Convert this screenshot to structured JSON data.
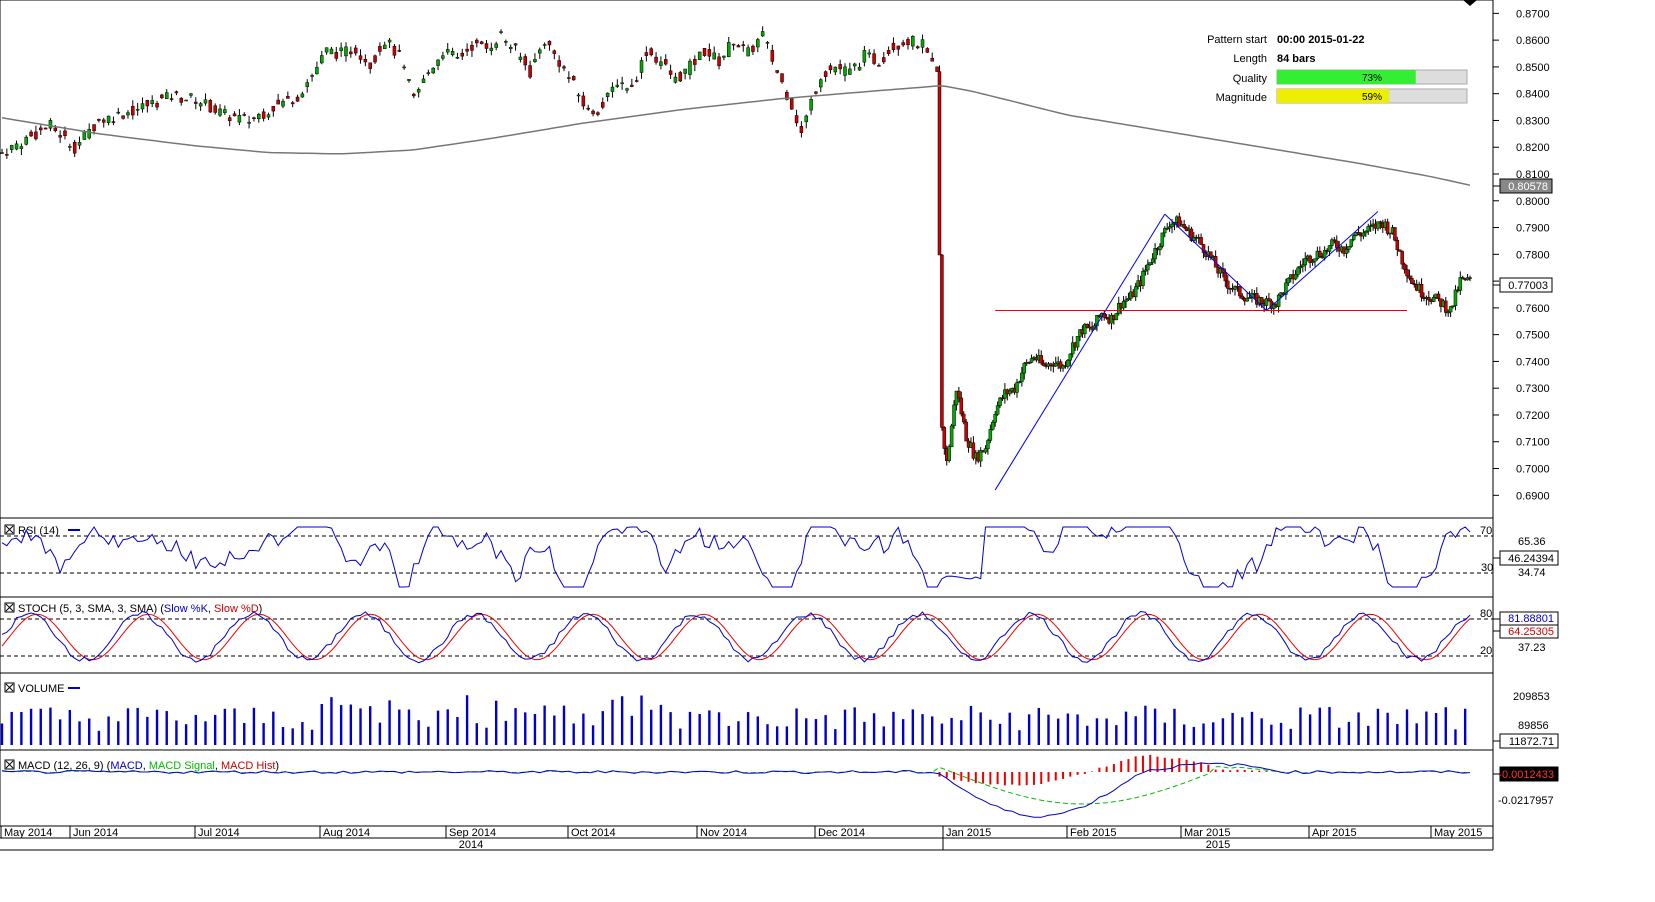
{
  "pattern_info": {
    "rows": [
      {
        "label": "Pattern start",
        "value": "00:00 2015-01-22"
      },
      {
        "label": "Length",
        "value": "84 bars"
      }
    ],
    "bars": [
      {
        "label": "Quality",
        "percent": 73,
        "text": "73%",
        "color": "#33ee33"
      },
      {
        "label": "Magnitude",
        "percent": 59,
        "text": "59%",
        "color": "#eeee00"
      }
    ]
  },
  "panels": {
    "rsi": {
      "label": "RSI (14)",
      "upper_level": "70",
      "lower_level": "30",
      "extra_ticks": [
        "65.36",
        "34.74"
      ],
      "current": "46.24394"
    },
    "stoch": {
      "label_plain": "STOCH (5, 3, SMA, 3, SMA) (",
      "label_k": "Slow %K",
      "label_sep": ", ",
      "label_d": "Slow %D",
      "label_end": ")",
      "upper_level": "80",
      "lower_level": "20",
      "extra_ticks": [
        "37.23"
      ],
      "current_k": "81.88801",
      "current_d": "64.25305"
    },
    "volume": {
      "label": "VOLUME",
      "ticks": [
        "209853",
        "89856"
      ],
      "current": "11872.71"
    },
    "macd": {
      "label_plain": "MACD (12, 26, 9) (",
      "label_macd": "MACD",
      "label_sep1": ", ",
      "label_signal": "MACD Signal",
      "label_sep2": ", ",
      "label_hist": "MACD Hist",
      "label_end": ")",
      "current": "-0.0012433",
      "ticks": [
        "-0.0217957"
      ]
    }
  },
  "x_axis": {
    "months": [
      "May 2014",
      "Jun 2014",
      "Jul 2014",
      "Aug 2014",
      "Sep 2014",
      "Oct 2014",
      "Nov 2014",
      "Dec 2014",
      "Jan 2015",
      "Feb 2015",
      "Mar 2015",
      "Apr 2015",
      "May 2015"
    ],
    "years": [
      "2014",
      "2015"
    ]
  },
  "chart_data": {
    "type": "candlestick",
    "y_ticks": [
      "0.8700",
      "0.8600",
      "0.8500",
      "0.8400",
      "0.8300",
      "0.8200",
      "0.8100",
      "0.8000",
      "0.7900",
      "0.7800",
      "0.7700",
      "0.7600",
      "0.7500",
      "0.7400",
      "0.7300",
      "0.7200",
      "0.7100",
      "0.7000",
      "0.6900"
    ],
    "ylim": [
      0.686,
      0.872
    ],
    "current_price": "0.77003",
    "sma_last": "0.80578",
    "support_level": 0.759,
    "price_path": [
      [
        0,
        0.818
      ],
      [
        10,
        0.823
      ],
      [
        20,
        0.828
      ],
      [
        30,
        0.82
      ],
      [
        40,
        0.83
      ],
      [
        55,
        0.834
      ],
      [
        70,
        0.839
      ],
      [
        80,
        0.838
      ],
      [
        92,
        0.832
      ],
      [
        102,
        0.83
      ],
      [
        112,
        0.835
      ],
      [
        122,
        0.839
      ],
      [
        128,
        0.847
      ],
      [
        134,
        0.856
      ],
      [
        140,
        0.855
      ],
      [
        146,
        0.857
      ],
      [
        152,
        0.851
      ],
      [
        158,
        0.86
      ],
      [
        164,
        0.854
      ],
      [
        170,
        0.838
      ],
      [
        176,
        0.848
      ],
      [
        182,
        0.856
      ],
      [
        188,
        0.853
      ],
      [
        194,
        0.858
      ],
      [
        200,
        0.857
      ],
      [
        206,
        0.862
      ],
      [
        212,
        0.856
      ],
      [
        218,
        0.848
      ],
      [
        224,
        0.86
      ],
      [
        230,
        0.852
      ],
      [
        236,
        0.843
      ],
      [
        242,
        0.833
      ],
      [
        248,
        0.835
      ],
      [
        254,
        0.845
      ],
      [
        260,
        0.842
      ],
      [
        266,
        0.856
      ],
      [
        272,
        0.852
      ],
      [
        278,
        0.845
      ],
      [
        284,
        0.85
      ],
      [
        290,
        0.856
      ],
      [
        296,
        0.852
      ],
      [
        302,
        0.86
      ],
      [
        308,
        0.855
      ],
      [
        314,
        0.862
      ],
      [
        320,
        0.848
      ],
      [
        326,
        0.836
      ],
      [
        330,
        0.825
      ],
      [
        334,
        0.837
      ],
      [
        338,
        0.847
      ],
      [
        344,
        0.85
      ],
      [
        350,
        0.848
      ],
      [
        356,
        0.854
      ],
      [
        362,
        0.852
      ],
      [
        368,
        0.858
      ],
      [
        374,
        0.86
      ],
      [
        380,
        0.858
      ],
      [
        384,
        0.85
      ],
      [
        386,
        0.847
      ],
      [
        388,
        0.715
      ],
      [
        390,
        0.702
      ],
      [
        394,
        0.73
      ],
      [
        398,
        0.712
      ],
      [
        402,
        0.704
      ],
      [
        406,
        0.708
      ],
      [
        410,
        0.722
      ],
      [
        414,
        0.728
      ],
      [
        418,
        0.73
      ],
      [
        422,
        0.738
      ],
      [
        426,
        0.742
      ],
      [
        430,
        0.738
      ],
      [
        434,
        0.74
      ],
      [
        438,
        0.738
      ],
      [
        442,
        0.746
      ],
      [
        446,
        0.752
      ],
      [
        450,
        0.752
      ],
      [
        454,
        0.758
      ],
      [
        458,
        0.756
      ],
      [
        462,
        0.762
      ],
      [
        466,
        0.764
      ],
      [
        470,
        0.77
      ],
      [
        474,
        0.778
      ],
      [
        478,
        0.785
      ],
      [
        482,
        0.792
      ],
      [
        486,
        0.792
      ],
      [
        490,
        0.788
      ],
      [
        494,
        0.785
      ],
      [
        498,
        0.78
      ],
      [
        502,
        0.774
      ],
      [
        506,
        0.769
      ],
      [
        510,
        0.766
      ],
      [
        514,
        0.764
      ],
      [
        518,
        0.763
      ],
      [
        522,
        0.762
      ],
      [
        526,
        0.762
      ],
      [
        530,
        0.768
      ],
      [
        534,
        0.773
      ],
      [
        538,
        0.778
      ],
      [
        542,
        0.78
      ],
      [
        546,
        0.781
      ],
      [
        550,
        0.784
      ],
      [
        554,
        0.782
      ],
      [
        558,
        0.787
      ],
      [
        562,
        0.788
      ],
      [
        566,
        0.79
      ],
      [
        570,
        0.792
      ],
      [
        574,
        0.788
      ],
      [
        578,
        0.778
      ],
      [
        582,
        0.77
      ],
      [
        586,
        0.766
      ],
      [
        590,
        0.764
      ],
      [
        594,
        0.762
      ],
      [
        598,
        0.759
      ],
      [
        602,
        0.77
      ],
      [
        606,
        0.77
      ]
    ],
    "sma_path": [
      [
        0,
        0.831
      ],
      [
        40,
        0.825
      ],
      [
        80,
        0.8205
      ],
      [
        110,
        0.818
      ],
      [
        140,
        0.8175
      ],
      [
        170,
        0.819
      ],
      [
        200,
        0.823
      ],
      [
        240,
        0.829
      ],
      [
        280,
        0.834
      ],
      [
        320,
        0.838
      ],
      [
        360,
        0.841
      ],
      [
        388,
        0.843
      ],
      [
        400,
        0.841
      ],
      [
        440,
        0.832
      ],
      [
        480,
        0.826
      ],
      [
        520,
        0.82
      ],
      [
        560,
        0.814
      ],
      [
        590,
        0.809
      ],
      [
        606,
        0.8058
      ]
    ],
    "pattern_lines": [
      [
        [
          410,
          0.692
        ],
        [
          480,
          0.795
        ]
      ],
      [
        [
          480,
          0.795
        ],
        [
          522,
          0.759
        ]
      ],
      [
        [
          522,
          0.759
        ],
        [
          568,
          0.796
        ]
      ]
    ]
  }
}
